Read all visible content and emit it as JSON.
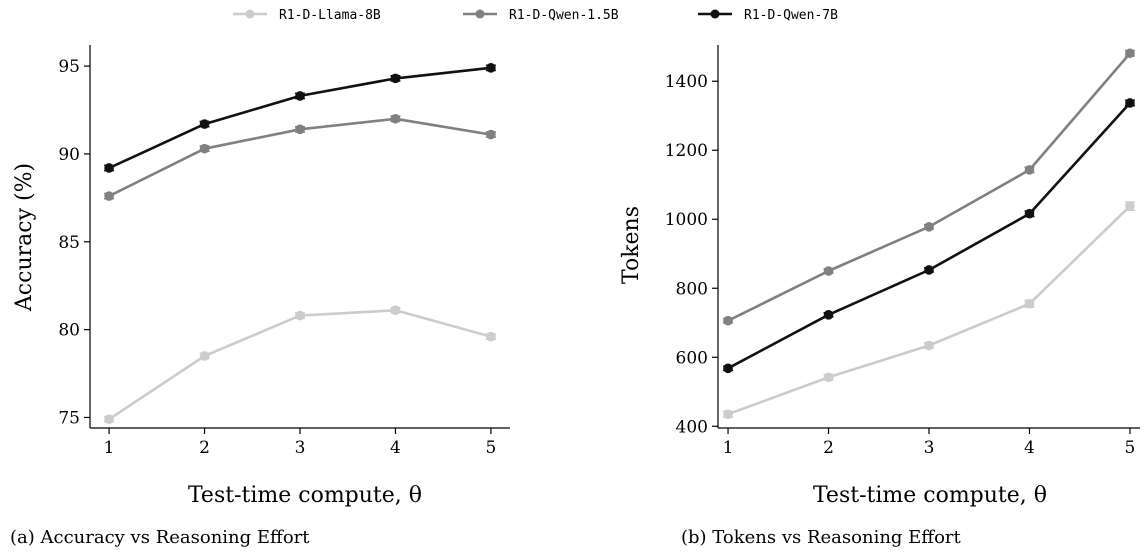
{
  "legend": [
    {
      "name": "R1-D-Llama-8B",
      "color": "#cccccc"
    },
    {
      "name": "R1-D-Qwen-1.5B",
      "color": "#808080"
    },
    {
      "name": "R1-D-Qwen-7B",
      "color": "#111111"
    }
  ],
  "chart_data": [
    {
      "type": "line",
      "caption": "(a) Accuracy vs Reasoning Effort",
      "xlabel": "Test-time compute, θ",
      "ylabel": "Accuracy (%)",
      "x": [
        1,
        2,
        3,
        4,
        5
      ],
      "xlim": [
        0.8,
        5.2
      ],
      "ylim": [
        74.4,
        96.2
      ],
      "yticks": [
        75,
        80,
        85,
        90,
        95
      ],
      "grid": false,
      "legend_position": "top-center",
      "series": [
        {
          "name": "R1-D-Llama-8B",
          "color": "#cccccc",
          "values": [
            74.9,
            78.5,
            80.8,
            81.1,
            79.6
          ],
          "err": [
            0.15,
            0.15,
            0.15,
            0.15,
            0.15
          ]
        },
        {
          "name": "R1-D-Qwen-1.5B",
          "color": "#808080",
          "values": [
            87.6,
            90.3,
            91.4,
            92.0,
            91.1
          ],
          "err": [
            0.15,
            0.15,
            0.15,
            0.15,
            0.15
          ]
        },
        {
          "name": "R1-D-Qwen-7B",
          "color": "#111111",
          "values": [
            89.2,
            91.7,
            93.3,
            94.3,
            94.9
          ],
          "err": [
            0.15,
            0.15,
            0.15,
            0.15,
            0.15
          ]
        }
      ]
    },
    {
      "type": "line",
      "caption": "(b) Tokens vs Reasoning Effort",
      "xlabel": "Test-time compute, θ",
      "ylabel": "Tokens",
      "x": [
        1,
        2,
        3,
        4,
        5
      ],
      "xlim": [
        0.9,
        5.1
      ],
      "ylim": [
        395,
        1505
      ],
      "yticks": [
        400,
        600,
        800,
        1000,
        1200,
        1400
      ],
      "grid": false,
      "legend_position": "top-center",
      "series": [
        {
          "name": "R1-D-Llama-8B",
          "color": "#cccccc",
          "values": [
            435,
            542,
            634,
            755,
            1038
          ],
          "err": [
            8,
            8,
            8,
            10,
            12
          ]
        },
        {
          "name": "R1-D-Qwen-1.5B",
          "color": "#808080",
          "values": [
            706,
            850,
            978,
            1143,
            1481
          ],
          "err": [
            6,
            6,
            6,
            8,
            8
          ]
        },
        {
          "name": "R1-D-Qwen-7B",
          "color": "#111111",
          "values": [
            568,
            723,
            853,
            1016,
            1337
          ],
          "err": [
            6,
            6,
            6,
            8,
            8
          ]
        }
      ]
    }
  ]
}
